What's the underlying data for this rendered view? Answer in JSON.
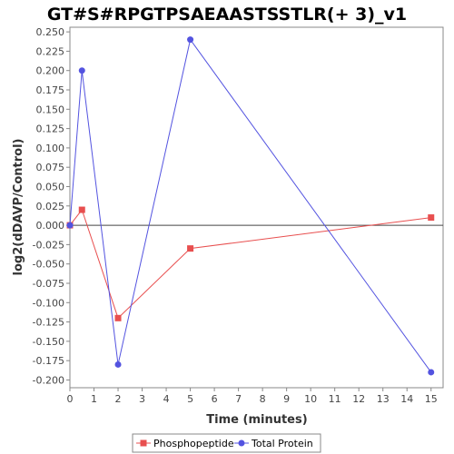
{
  "colors": {
    "phospho": "#e84f4f",
    "protein": "#5353e0",
    "zero_line": "#444444",
    "axis": "#888888"
  },
  "chart_data": {
    "type": "line",
    "title": "GT#S#RPGTPSAEAASTSSTLR(+ 3)_v1",
    "xlabel": "Time (minutes)",
    "ylabel": "log2(dDAVP/Control)",
    "xlim": [
      0,
      15.5
    ],
    "ylim": [
      -0.21,
      0.256
    ],
    "xticks": [
      0,
      1,
      2,
      3,
      4,
      5,
      6,
      7,
      8,
      9,
      10,
      11,
      12,
      13,
      14,
      15
    ],
    "xtick_labels": [
      "0",
      "1",
      "2",
      "3",
      "4",
      "5",
      "6",
      "7",
      "8",
      "9",
      "10",
      "11",
      "12",
      "13",
      "14",
      "15"
    ],
    "yticks": [
      0.25,
      0.225,
      0.2,
      0.175,
      0.15,
      0.125,
      0.1,
      0.075,
      0.05,
      0.025,
      0,
      -0.025,
      -0.05,
      -0.075,
      -0.1,
      -0.125,
      -0.15,
      -0.175,
      -0.2
    ],
    "ytick_labels": [
      "0.250",
      "0.225",
      "0.200",
      "0.175",
      "0.150",
      "0.125",
      "0.100",
      "0.075",
      "0.050",
      "0.025",
      "0.000",
      "-0.025",
      "-0.050",
      "-0.075",
      "-0.100",
      "-0.125",
      "-0.150",
      "-0.175",
      "-0.200"
    ],
    "grid": false,
    "legend_position": "bottom",
    "series": [
      {
        "name": "Phosphopeptide",
        "marker": "square",
        "color": "#e84f4f",
        "x": [
          0,
          0.5,
          2,
          5,
          15
        ],
        "y": [
          0.0,
          0.02,
          -0.12,
          -0.03,
          0.01
        ]
      },
      {
        "name": "Total Protein",
        "marker": "circle",
        "color": "#5353e0",
        "x": [
          0,
          0.5,
          2,
          5,
          15
        ],
        "y": [
          0.0,
          0.2,
          -0.18,
          0.24,
          -0.19
        ]
      }
    ]
  }
}
